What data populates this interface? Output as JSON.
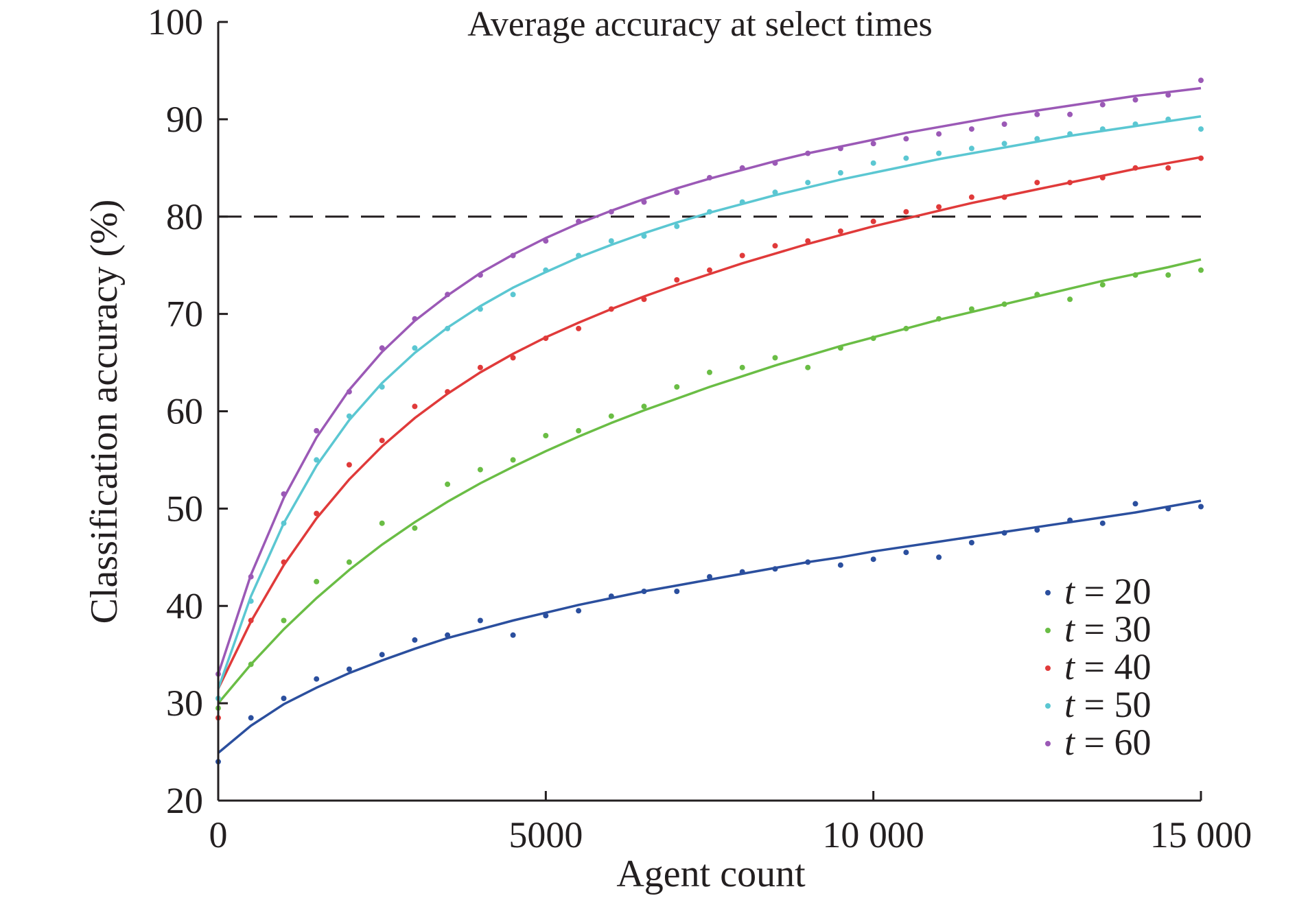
{
  "chart_data": {
    "type": "scatter",
    "title": "Average accuracy at select times",
    "xlabel": "Agent count",
    "ylabel": "Classification accuracy (%)",
    "xlim": [
      0,
      15000
    ],
    "ylim": [
      20,
      100
    ],
    "xticks": [
      0,
      5000,
      10000,
      15000
    ],
    "xtick_labels": [
      "0",
      "5000",
      "10 000",
      "15 000"
    ],
    "yticks": [
      20,
      30,
      40,
      50,
      60,
      70,
      80,
      90,
      100
    ],
    "ytick_labels": [
      "20",
      "30",
      "40",
      "50",
      "60",
      "70",
      "80",
      "90",
      "100"
    ],
    "reference_line": {
      "y": 80,
      "style": "dashed"
    },
    "grid": false,
    "legend_position": "bottom-right",
    "series": [
      {
        "name": "t = 20",
        "legend_var": "t",
        "legend_rest": " = 20",
        "color": "#2b4f9e",
        "x": [
          0,
          500,
          1000,
          1500,
          2000,
          2500,
          3000,
          3500,
          4000,
          4500,
          5000,
          5500,
          6000,
          6500,
          7000,
          7500,
          8000,
          8500,
          9000,
          9500,
          10000,
          10500,
          11000,
          11500,
          12000,
          12500,
          13000,
          13500,
          14000,
          14500,
          15000
        ],
        "y": [
          24.0,
          28.5,
          30.5,
          32.5,
          33.5,
          35.0,
          36.5,
          37.0,
          38.5,
          37.0,
          39.0,
          39.5,
          41.0,
          41.5,
          41.5,
          43.0,
          43.5,
          43.8,
          44.5,
          44.2,
          44.8,
          45.5,
          45.0,
          46.5,
          47.5,
          47.8,
          48.8,
          48.5,
          50.5,
          50.0,
          50.2
        ],
        "fit": [
          24.9,
          27.7,
          29.9,
          31.6,
          33.1,
          34.4,
          35.6,
          36.7,
          37.6,
          38.5,
          39.3,
          40.1,
          40.8,
          41.5,
          42.1,
          42.7,
          43.3,
          43.9,
          44.5,
          45.0,
          45.6,
          46.1,
          46.6,
          47.1,
          47.6,
          48.1,
          48.6,
          49.1,
          49.6,
          50.2,
          50.8
        ]
      },
      {
        "name": "t = 30",
        "legend_var": "t",
        "legend_rest": " = 30",
        "color": "#6abd45",
        "x": [
          0,
          500,
          1000,
          1500,
          2000,
          2500,
          3000,
          3500,
          4000,
          4500,
          5000,
          5500,
          6000,
          6500,
          7000,
          7500,
          8000,
          8500,
          9000,
          9500,
          10000,
          10500,
          11000,
          11500,
          12000,
          12500,
          13000,
          13500,
          14000,
          14500,
          15000
        ],
        "y": [
          29.5,
          34.0,
          38.5,
          42.5,
          44.5,
          48.5,
          48.0,
          52.5,
          54.0,
          55.0,
          57.5,
          58.0,
          59.5,
          60.5,
          62.5,
          64.0,
          64.5,
          65.5,
          64.5,
          66.5,
          67.5,
          68.5,
          69.5,
          70.5,
          71.0,
          72.0,
          71.5,
          73.0,
          74.0,
          74.0,
          74.5
        ],
        "fit": [
          30.0,
          34.0,
          37.6,
          40.8,
          43.7,
          46.3,
          48.6,
          50.7,
          52.6,
          54.3,
          55.9,
          57.4,
          58.8,
          60.1,
          61.3,
          62.5,
          63.6,
          64.7,
          65.7,
          66.7,
          67.6,
          68.5,
          69.4,
          70.2,
          71.0,
          71.8,
          72.6,
          73.4,
          74.1,
          74.8,
          75.6
        ]
      },
      {
        "name": "t = 40",
        "legend_var": "t",
        "legend_rest": " = 40",
        "color": "#e03a3a",
        "x": [
          0,
          500,
          1000,
          1500,
          2000,
          2500,
          3000,
          3500,
          4000,
          4500,
          5000,
          5500,
          6000,
          6500,
          7000,
          7500,
          8000,
          8500,
          9000,
          9500,
          10000,
          10500,
          11000,
          11500,
          12000,
          12500,
          13000,
          13500,
          14000,
          14500,
          15000
        ],
        "y": [
          28.5,
          38.5,
          44.5,
          49.5,
          54.5,
          57.0,
          60.5,
          62.0,
          64.5,
          65.5,
          67.5,
          68.5,
          70.5,
          71.5,
          73.5,
          74.5,
          76.0,
          77.0,
          77.5,
          78.5,
          79.5,
          80.5,
          81.0,
          82.0,
          82.0,
          83.5,
          83.5,
          84.0,
          85.0,
          85.0,
          86.0
        ],
        "fit": [
          31.5,
          38.4,
          44.2,
          49.0,
          53.0,
          56.4,
          59.3,
          61.8,
          64.0,
          65.9,
          67.6,
          69.1,
          70.5,
          71.8,
          73.0,
          74.1,
          75.2,
          76.2,
          77.2,
          78.1,
          79.0,
          79.8,
          80.6,
          81.4,
          82.1,
          82.8,
          83.5,
          84.2,
          84.9,
          85.5,
          86.1
        ]
      },
      {
        "name": "t = 50",
        "legend_var": "t",
        "legend_rest": " = 50",
        "color": "#5bc7d2",
        "x": [
          0,
          500,
          1000,
          1500,
          2000,
          2500,
          3000,
          3500,
          4000,
          4500,
          5000,
          5500,
          6000,
          6500,
          7000,
          7500,
          8000,
          8500,
          9000,
          9500,
          10000,
          10500,
          11000,
          11500,
          12000,
          12500,
          13000,
          13500,
          14000,
          14500,
          15000
        ],
        "y": [
          30.5,
          40.5,
          48.5,
          55.0,
          59.5,
          62.5,
          66.5,
          68.5,
          70.5,
          72.0,
          74.5,
          76.0,
          77.5,
          78.0,
          79.0,
          80.5,
          81.5,
          82.5,
          83.5,
          84.5,
          85.5,
          86.0,
          86.5,
          87.0,
          87.5,
          88.0,
          88.5,
          89.0,
          89.5,
          90.0,
          89.0
        ],
        "fit": [
          31.5,
          41.0,
          48.5,
          54.4,
          59.1,
          62.9,
          66.0,
          68.6,
          70.8,
          72.7,
          74.3,
          75.8,
          77.1,
          78.3,
          79.4,
          80.4,
          81.3,
          82.2,
          83.0,
          83.8,
          84.5,
          85.2,
          85.9,
          86.5,
          87.1,
          87.7,
          88.3,
          88.8,
          89.3,
          89.8,
          90.3
        ]
      },
      {
        "name": "t = 60",
        "legend_var": "t",
        "legend_rest": " = 60",
        "color": "#9b59b6",
        "x": [
          0,
          500,
          1000,
          1500,
          2000,
          2500,
          3000,
          3500,
          4000,
          4500,
          5000,
          5500,
          6000,
          6500,
          7000,
          7500,
          8000,
          8500,
          9000,
          9500,
          10000,
          10500,
          11000,
          11500,
          12000,
          12500,
          13000,
          13500,
          14000,
          14500,
          15000
        ],
        "y": [
          33.0,
          43.0,
          51.5,
          58.0,
          62.0,
          66.5,
          69.5,
          72.0,
          74.0,
          76.0,
          77.5,
          79.5,
          80.5,
          81.5,
          82.5,
          84.0,
          85.0,
          85.5,
          86.5,
          87.0,
          87.5,
          88.0,
          88.5,
          89.0,
          89.5,
          90.5,
          90.5,
          91.5,
          92.0,
          92.5,
          94.0
        ],
        "fit": [
          33.0,
          43.2,
          51.1,
          57.3,
          62.2,
          66.1,
          69.3,
          71.9,
          74.2,
          76.1,
          77.8,
          79.3,
          80.6,
          81.8,
          82.9,
          83.9,
          84.8,
          85.7,
          86.5,
          87.2,
          87.9,
          88.6,
          89.2,
          89.8,
          90.4,
          90.9,
          91.4,
          91.9,
          92.4,
          92.8,
          93.2
        ]
      }
    ]
  }
}
